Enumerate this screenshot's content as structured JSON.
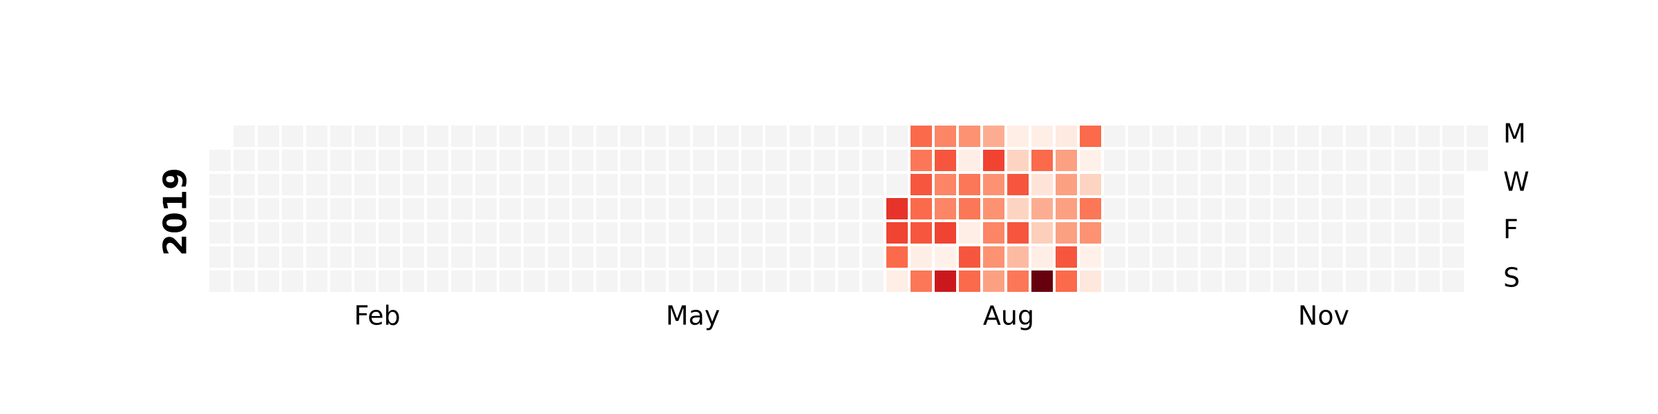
{
  "chart_data": {
    "type": "heatmap",
    "subtype": "calendar",
    "year": "2019",
    "month_labels": [
      "Feb",
      "May",
      "Aug",
      "Nov"
    ],
    "day_labels": [
      "M",
      "W",
      "F",
      "S"
    ],
    "empty_color": "#f4f4f4",
    "colormap": "Reds",
    "value_range": [
      0,
      100
    ],
    "active_weeks": [
      {
        "week": 28,
        "values": [
          null,
          null,
          null,
          75,
          70,
          60,
          5
        ]
      },
      {
        "week": 29,
        "values": [
          60,
          55,
          65,
          60,
          65,
          5,
          55
        ]
      },
      {
        "week": 30,
        "values": [
          50,
          65,
          50,
          50,
          70,
          3,
          85
        ]
      },
      {
        "week": 31,
        "values": [
          45,
          5,
          55,
          55,
          5,
          65,
          60
        ]
      },
      {
        "week": 32,
        "values": [
          35,
          70,
          45,
          45,
          50,
          45,
          40
        ]
      },
      {
        "week": 33,
        "values": [
          5,
          20,
          65,
          20,
          65,
          30,
          55
        ]
      },
      {
        "week": 34,
        "values": [
          5,
          60,
          12,
          35,
          22,
          5,
          100
        ]
      },
      {
        "week": 35,
        "values": [
          8,
          40,
          40,
          40,
          40,
          65,
          60
        ]
      },
      {
        "week": 36,
        "values": [
          60,
          3,
          20,
          55,
          45,
          3,
          10
        ]
      }
    ]
  }
}
